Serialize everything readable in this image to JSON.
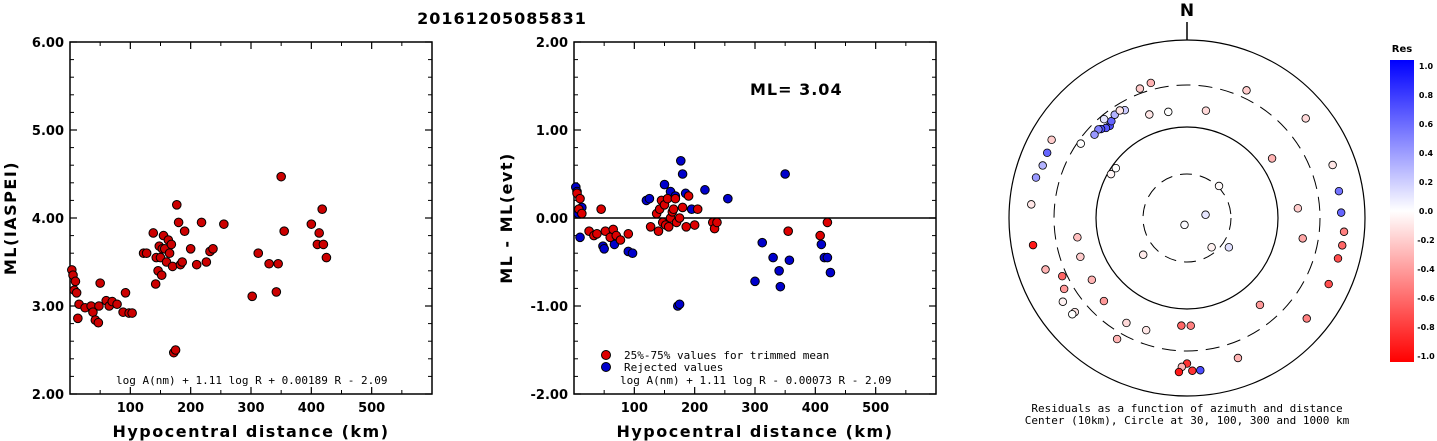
{
  "event_id": "20161205085831",
  "chart_data": [
    {
      "type": "scatter",
      "name": "ml-vs-distance",
      "title": "",
      "xlabel": "Hypocentral distance (km)",
      "ylabel": "ML(IASPEI)",
      "xlim": [
        0,
        600
      ],
      "ylim": [
        2.0,
        6.0
      ],
      "x_ticks": [
        "100",
        "200",
        "300",
        "400",
        "500"
      ],
      "y_ticks": [
        "2.00",
        "3.00",
        "4.00",
        "5.00",
        "6.00"
      ],
      "formula": "log A(nm) + 1.11 log R + 0.00189 R - 2.09",
      "points": [
        [
          3,
          3.41
        ],
        [
          5,
          3.35
        ],
        [
          7,
          3.18
        ],
        [
          9,
          3.28
        ],
        [
          11,
          3.15
        ],
        [
          13,
          2.86
        ],
        [
          15,
          3.02
        ],
        [
          25,
          2.98
        ],
        [
          35,
          3.0
        ],
        [
          38,
          2.93
        ],
        [
          42,
          2.84
        ],
        [
          47,
          2.81
        ],
        [
          48,
          3.0
        ],
        [
          50,
          3.26
        ],
        [
          60,
          3.06
        ],
        [
          65,
          3.0
        ],
        [
          70,
          3.05
        ],
        [
          78,
          3.02
        ],
        [
          88,
          2.93
        ],
        [
          92,
          3.15
        ],
        [
          98,
          2.92
        ],
        [
          103,
          2.92
        ],
        [
          122,
          3.6
        ],
        [
          127,
          3.6
        ],
        [
          138,
          3.83
        ],
        [
          142,
          3.25
        ],
        [
          143,
          3.55
        ],
        [
          146,
          3.4
        ],
        [
          148,
          3.68
        ],
        [
          150,
          3.55
        ],
        [
          152,
          3.35
        ],
        [
          153,
          3.65
        ],
        [
          155,
          3.8
        ],
        [
          157,
          3.65
        ],
        [
          160,
          3.5
        ],
        [
          163,
          3.75
        ],
        [
          165,
          3.6
        ],
        [
          168,
          3.7
        ],
        [
          170,
          3.45
        ],
        [
          172,
          2.47
        ],
        [
          175,
          2.5
        ],
        [
          177,
          4.15
        ],
        [
          180,
          3.95
        ],
        [
          183,
          3.47
        ],
        [
          186,
          3.5
        ],
        [
          190,
          3.85
        ],
        [
          200,
          3.65
        ],
        [
          210,
          3.47
        ],
        [
          218,
          3.95
        ],
        [
          226,
          3.5
        ],
        [
          232,
          3.62
        ],
        [
          237,
          3.65
        ],
        [
          255,
          3.93
        ],
        [
          302,
          3.11
        ],
        [
          312,
          3.6
        ],
        [
          330,
          3.48
        ],
        [
          342,
          3.16
        ],
        [
          345,
          3.48
        ],
        [
          350,
          4.47
        ],
        [
          355,
          3.85
        ],
        [
          400,
          3.93
        ],
        [
          410,
          3.7
        ],
        [
          413,
          3.83
        ],
        [
          418,
          4.1
        ],
        [
          420,
          3.7
        ],
        [
          425,
          3.55
        ]
      ]
    },
    {
      "type": "scatter",
      "name": "residual-vs-distance",
      "title": "",
      "xlabel": "Hypocentral distance (km)",
      "ylabel": "ML - ML(evt)",
      "xlim": [
        0,
        600
      ],
      "ylim": [
        -2.0,
        2.0
      ],
      "x_ticks": [
        "100",
        "200",
        "300",
        "400",
        "500"
      ],
      "y_ticks": [
        "-2.00",
        "-1.00",
        "0.00",
        "1.00",
        "2.00"
      ],
      "ml_label": "ML= 3.04",
      "legend": {
        "placement": "bottom-left",
        "used": "25%-75% values for trimmed mean",
        "rejected": "Rejected values"
      },
      "colors": {
        "used": "#dd0000",
        "rejected": "#0000cc"
      },
      "formula": "log A(nm) + 1.11 log R - 0.00073 R - 2.09",
      "used_points": [
        [
          5,
          0.28
        ],
        [
          8,
          0.1
        ],
        [
          10,
          0.22
        ],
        [
          13,
          0.05
        ],
        [
          25,
          -0.15
        ],
        [
          33,
          -0.2
        ],
        [
          38,
          -0.18
        ],
        [
          45,
          0.1
        ],
        [
          52,
          -0.15
        ],
        [
          60,
          -0.22
        ],
        [
          65,
          -0.13
        ],
        [
          70,
          -0.2
        ],
        [
          77,
          -0.25
        ],
        [
          90,
          -0.18
        ],
        [
          127,
          -0.1
        ],
        [
          137,
          0.05
        ],
        [
          140,
          -0.15
        ],
        [
          142,
          0.1
        ],
        [
          145,
          0.2
        ],
        [
          147,
          -0.05
        ],
        [
          150,
          0.15
        ],
        [
          152,
          -0.08
        ],
        [
          155,
          0.22
        ],
        [
          157,
          -0.1
        ],
        [
          160,
          0.0
        ],
        [
          163,
          0.07
        ],
        [
          165,
          0.1
        ],
        [
          168,
          0.22
        ],
        [
          170,
          -0.05
        ],
        [
          175,
          0.0
        ],
        [
          180,
          0.12
        ],
        [
          186,
          -0.1
        ],
        [
          190,
          0.25
        ],
        [
          200,
          -0.08
        ],
        [
          205,
          0.1
        ],
        [
          230,
          -0.05
        ],
        [
          233,
          -0.12
        ],
        [
          237,
          -0.05
        ],
        [
          355,
          -0.15
        ],
        [
          408,
          -0.2
        ],
        [
          420,
          -0.05
        ]
      ],
      "rejected_points": [
        [
          3,
          0.35
        ],
        [
          5,
          0.3
        ],
        [
          7,
          0.05
        ],
        [
          10,
          -0.22
        ],
        [
          13,
          0.12
        ],
        [
          48,
          -0.32
        ],
        [
          50,
          -0.35
        ],
        [
          67,
          -0.3
        ],
        [
          90,
          -0.38
        ],
        [
          97,
          -0.4
        ],
        [
          120,
          0.2
        ],
        [
          125,
          0.22
        ],
        [
          150,
          0.38
        ],
        [
          160,
          0.3
        ],
        [
          168,
          0.25
        ],
        [
          172,
          -1.0
        ],
        [
          175,
          -0.98
        ],
        [
          177,
          0.65
        ],
        [
          180,
          0.5
        ],
        [
          185,
          0.28
        ],
        [
          195,
          0.1
        ],
        [
          217,
          0.32
        ],
        [
          255,
          0.22
        ],
        [
          300,
          -0.72
        ],
        [
          312,
          -0.28
        ],
        [
          330,
          -0.45
        ],
        [
          340,
          -0.6
        ],
        [
          342,
          -0.78
        ],
        [
          350,
          0.5
        ],
        [
          357,
          -0.48
        ],
        [
          410,
          -0.3
        ],
        [
          415,
          -0.45
        ],
        [
          420,
          -0.45
        ],
        [
          425,
          -0.62
        ]
      ]
    },
    {
      "type": "polar-scatter",
      "name": "residual-azimuth-map",
      "north_label": "N",
      "caption_line1": "Residuals as a function of azimuth and distance",
      "caption_line2": "Center (10km), Circle at 30, 100, 300 and 1000 km",
      "colorbar": {
        "title": "Res",
        "ticks": [
          "1.0",
          "0.8",
          "0.6",
          "0.4",
          "0.2",
          "0.0",
          "-0.2",
          "-0.4",
          "-0.6",
          "-0.8",
          "-1.0"
        ],
        "max_color": "#0000ff",
        "mid_color": "#ffffff",
        "min_color": "#ff0000"
      },
      "stations": [
        {
          "az": 45,
          "dist": 31,
          "res": -0.02
        },
        {
          "az": 80,
          "dist": 16,
          "res": 0.1
        },
        {
          "az": 125,
          "dist": 36,
          "res": 0.12
        },
        {
          "az": 140,
          "dist": 26,
          "res": -0.05
        },
        {
          "az": 200,
          "dist": 12,
          "res": 0.02
        },
        {
          "az": 230,
          "dist": 42,
          "res": -0.08
        },
        {
          "az": 300,
          "dist": 92,
          "res": -0.04
        },
        {
          "az": 305,
          "dist": 90,
          "res": 0.0
        },
        {
          "az": 55,
          "dist": 140,
          "res": -0.3
        },
        {
          "az": 85,
          "dist": 170,
          "res": -0.2
        },
        {
          "az": 100,
          "dist": 200,
          "res": -0.35
        },
        {
          "az": 140,
          "dist": 180,
          "res": -0.4
        },
        {
          "az": 178,
          "dist": 155,
          "res": -0.5
        },
        {
          "az": 183,
          "dist": 155,
          "res": -0.6
        },
        {
          "az": 210,
          "dist": 220,
          "res": -0.15
        },
        {
          "az": 237,
          "dist": 180,
          "res": -0.3
        },
        {
          "az": 260,
          "dist": 170,
          "res": -0.25
        },
        {
          "az": 250,
          "dist": 180,
          "res": -0.2
        },
        {
          "az": 225,
          "dist": 200,
          "res": -0.4
        },
        {
          "az": 200,
          "dist": 210,
          "res": -0.1
        },
        {
          "az": 10,
          "dist": 160,
          "res": -0.15
        },
        {
          "az": 350,
          "dist": 155,
          "res": 0.0
        },
        {
          "az": 340,
          "dist": 165,
          "res": -0.1
        },
        {
          "az": 320,
          "dist": 215,
          "res": 0.7
        },
        {
          "az": 318,
          "dist": 220,
          "res": 0.65
        },
        {
          "az": 322,
          "dist": 230,
          "res": 0.6
        },
        {
          "az": 316,
          "dist": 235,
          "res": 0.7
        },
        {
          "az": 315,
          "dist": 245,
          "res": 0.5
        },
        {
          "az": 312,
          "dist": 240,
          "res": 0.4
        },
        {
          "az": 325,
          "dist": 250,
          "res": 0.3
        },
        {
          "az": 330,
          "dist": 240,
          "res": 0.2
        },
        {
          "az": 328,
          "dist": 255,
          "res": -0.1
        },
        {
          "az": 320,
          "dist": 270,
          "res": 0.1
        },
        {
          "az": 305,
          "dist": 275,
          "res": 0.0
        },
        {
          "az": 340,
          "dist": 340,
          "res": -0.2
        },
        {
          "az": 345,
          "dist": 360,
          "res": -0.3
        },
        {
          "az": 25,
          "dist": 370,
          "res": -0.2
        },
        {
          "az": 50,
          "dist": 540,
          "res": -0.15
        },
        {
          "az": 70,
          "dist": 540,
          "res": -0.1
        },
        {
          "az": 80,
          "dist": 530,
          "res": 0.55
        },
        {
          "az": 88,
          "dist": 530,
          "res": 0.6
        },
        {
          "az": 95,
          "dist": 580,
          "res": -0.5
        },
        {
          "az": 100,
          "dist": 580,
          "res": -0.6
        },
        {
          "az": 105,
          "dist": 560,
          "res": -0.7
        },
        {
          "az": 115,
          "dist": 560,
          "res": -0.7
        },
        {
          "az": 130,
          "dist": 560,
          "res": -0.5
        },
        {
          "az": 160,
          "dist": 460,
          "res": -0.3
        },
        {
          "az": 180,
          "dist": 420,
          "res": -0.8
        },
        {
          "az": 182,
          "dist": 460,
          "res": -0.3
        },
        {
          "az": 178,
          "dist": 510,
          "res": -0.8
        },
        {
          "az": 183,
          "dist": 530,
          "res": -0.9
        },
        {
          "az": 175,
          "dist": 510,
          "res": 0.7
        },
        {
          "az": 210,
          "dist": 360,
          "res": -0.3
        },
        {
          "az": 230,
          "dist": 430,
          "res": -0.1
        },
        {
          "az": 230,
          "dist": 470,
          "res": 0.0
        },
        {
          "az": 236,
          "dist": 470,
          "res": -0.05
        },
        {
          "az": 240,
          "dist": 380,
          "res": -0.4
        },
        {
          "az": 245,
          "dist": 340,
          "res": -0.6
        },
        {
          "az": 250,
          "dist": 480,
          "res": -0.3
        },
        {
          "az": 260,
          "dist": 560,
          "res": -0.9
        },
        {
          "az": 275,
          "dist": 560,
          "res": -0.1
        },
        {
          "az": 285,
          "dist": 560,
          "res": 0.4
        },
        {
          "az": 290,
          "dist": 520,
          "res": 0.3
        },
        {
          "az": 295,
          "dist": 530,
          "res": 0.6
        },
        {
          "az": 300,
          "dist": 560,
          "res": -0.2
        }
      ]
    }
  ]
}
